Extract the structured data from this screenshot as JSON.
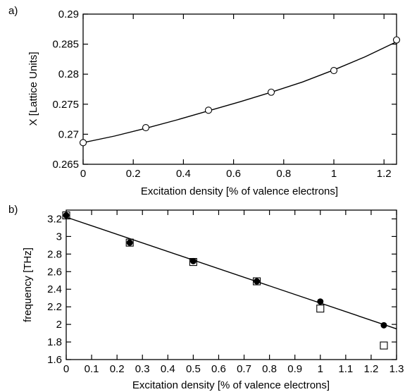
{
  "chart_data": [
    {
      "panel_label": "a)",
      "type": "scatter",
      "xlabel": "Excitation density [% of valence electrons]",
      "ylabel": "X [Lattice Units]",
      "xlim": [
        0,
        1.25
      ],
      "ylim": [
        0.265,
        0.29
      ],
      "xticks": [
        0,
        0.2,
        0.4,
        0.6,
        0.8,
        1,
        1.2
      ],
      "xtick_labels": [
        "0",
        "0.2",
        "0.4",
        "0.6",
        "0.8",
        "1",
        "1.2"
      ],
      "yticks": [
        0.265,
        0.27,
        0.275,
        0.28,
        0.285,
        0.29
      ],
      "ytick_labels": [
        "0.265",
        "0.27",
        "0.275",
        "0.28",
        "0.285",
        "0.29"
      ],
      "grid": false,
      "series": [
        {
          "marker": "open-circle",
          "x": [
            0,
            0.25,
            0.5,
            0.75,
            1.0,
            1.25
          ],
          "y": [
            0.2686,
            0.2711,
            0.274,
            0.277,
            0.2806,
            0.2857
          ]
        },
        {
          "style": "curve",
          "x": [
            0,
            0.125,
            0.25,
            0.375,
            0.5,
            0.625,
            0.75,
            0.875,
            1.0,
            1.125,
            1.25
          ],
          "y": [
            0.2686,
            0.2697,
            0.271,
            0.2724,
            0.2739,
            0.2754,
            0.277,
            0.2787,
            0.2807,
            0.2829,
            0.2854
          ]
        }
      ]
    },
    {
      "panel_label": "b)",
      "type": "scatter",
      "xlabel": "Excitation density [% of valence electrons]",
      "ylabel": "frequency [THz]",
      "xlim": [
        0,
        1.3
      ],
      "ylim": [
        1.6,
        3.3
      ],
      "xticks": [
        0,
        0.1,
        0.2,
        0.3,
        0.4,
        0.5,
        0.6,
        0.7,
        0.8,
        0.9,
        1,
        1.1,
        1.2,
        1.3
      ],
      "xtick_labels": [
        "0",
        "0.1",
        "0.2",
        "0.3",
        "0.4",
        "0.5",
        "0.6",
        "0.7",
        "0.8",
        "0.9",
        "1",
        "1.1",
        "1.2",
        "1.3"
      ],
      "yticks": [
        1.6,
        1.8,
        2.0,
        2.2,
        2.4,
        2.6,
        2.8,
        3.0,
        3.2
      ],
      "ytick_labels": [
        "1.6",
        "1.8",
        "2",
        "2.2",
        "2.4",
        "2.6",
        "2.8",
        "3",
        "3.2"
      ],
      "grid": false,
      "series": [
        {
          "marker": "filled-circle",
          "x": [
            0,
            0.25,
            0.5,
            0.75,
            1.0,
            1.25
          ],
          "y": [
            3.24,
            2.93,
            2.72,
            2.49,
            2.26,
            1.99
          ]
        },
        {
          "marker": "open-square",
          "x": [
            0,
            0.25,
            0.5,
            0.75,
            1.0,
            1.25
          ],
          "y": [
            3.24,
            2.93,
            2.71,
            2.49,
            2.18,
            1.76
          ]
        },
        {
          "style": "line",
          "x": [
            0,
            1.3
          ],
          "y": [
            3.22,
            1.95
          ]
        }
      ]
    }
  ]
}
